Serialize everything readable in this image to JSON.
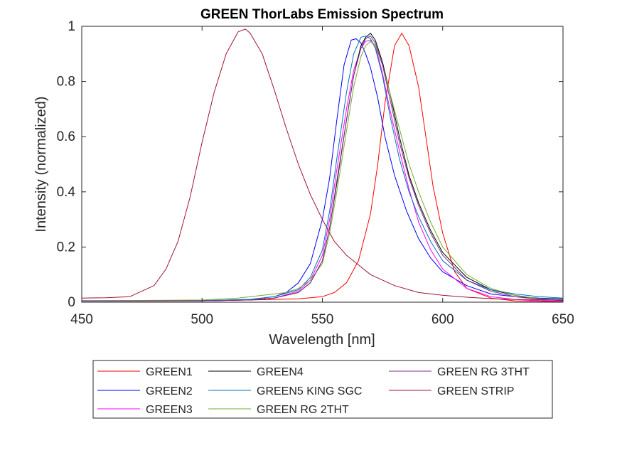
{
  "chart_data": {
    "type": "line",
    "title": "GREEN ThorLabs Emission Spectrum",
    "xlabel": "Wavelength [nm]",
    "ylabel": "Intensity (normalized)",
    "xlim": [
      450,
      650
    ],
    "ylim": [
      0,
      1
    ],
    "xticks": [
      450,
      500,
      550,
      600,
      650
    ],
    "yticks": [
      0,
      0.2,
      0.4,
      0.6,
      0.8,
      1
    ],
    "ytick_labels": [
      "0",
      "0.2",
      "0.4",
      "0.6",
      "0.8",
      "1"
    ],
    "grid": false,
    "legend_position": "below",
    "series": [
      {
        "name": "GREEN1",
        "color": "#ff0000",
        "x": [
          450,
          500,
          520,
          540,
          550,
          555,
          560,
          565,
          570,
          573,
          576,
          580,
          583,
          586,
          590,
          593,
          596,
          600,
          605,
          610,
          620,
          630,
          640,
          650
        ],
        "y": [
          0.005,
          0.005,
          0.008,
          0.012,
          0.02,
          0.035,
          0.07,
          0.15,
          0.32,
          0.5,
          0.72,
          0.93,
          0.975,
          0.93,
          0.78,
          0.6,
          0.42,
          0.25,
          0.11,
          0.05,
          0.015,
          0.005,
          0.003,
          0.002
        ]
      },
      {
        "name": "GREEN2",
        "color": "#0000ff",
        "x": [
          450,
          500,
          520,
          530,
          535,
          540,
          545,
          550,
          553,
          556,
          559,
          562,
          564,
          566,
          568,
          570,
          573,
          576,
          580,
          585,
          590,
          595,
          600,
          610,
          620,
          630,
          640,
          650
        ],
        "y": [
          0.005,
          0.006,
          0.01,
          0.02,
          0.035,
          0.07,
          0.14,
          0.3,
          0.45,
          0.66,
          0.86,
          0.95,
          0.955,
          0.94,
          0.9,
          0.85,
          0.74,
          0.6,
          0.46,
          0.33,
          0.23,
          0.16,
          0.11,
          0.06,
          0.03,
          0.02,
          0.015,
          0.012
        ]
      },
      {
        "name": "GREEN3",
        "color": "#ff00ff",
        "x": [
          450,
          500,
          520,
          530,
          540,
          545,
          550,
          553,
          556,
          560,
          563,
          566,
          568,
          570,
          572,
          575,
          578,
          582,
          586,
          590,
          595,
          600,
          610,
          620,
          630,
          640,
          650
        ],
        "y": [
          0.004,
          0.005,
          0.008,
          0.015,
          0.04,
          0.08,
          0.17,
          0.3,
          0.48,
          0.7,
          0.84,
          0.92,
          0.945,
          0.95,
          0.93,
          0.83,
          0.7,
          0.55,
          0.41,
          0.29,
          0.19,
          0.12,
          0.05,
          0.02,
          0.01,
          0.005,
          0.003
        ]
      },
      {
        "name": "GREEN4",
        "color": "#000000",
        "x": [
          450,
          500,
          520,
          530,
          540,
          545,
          550,
          553,
          556,
          560,
          563,
          566,
          568,
          570,
          572,
          575,
          578,
          582,
          586,
          590,
          595,
          600,
          610,
          620,
          630,
          640,
          650
        ],
        "y": [
          0.004,
          0.005,
          0.008,
          0.015,
          0.035,
          0.07,
          0.15,
          0.27,
          0.43,
          0.66,
          0.82,
          0.93,
          0.96,
          0.975,
          0.95,
          0.87,
          0.76,
          0.6,
          0.46,
          0.36,
          0.26,
          0.18,
          0.09,
          0.045,
          0.025,
          0.012,
          0.008
        ]
      },
      {
        "name": "GREEN5 KING SGC",
        "color": "#0072bd",
        "x": [
          450,
          500,
          520,
          530,
          540,
          545,
          550,
          553,
          556,
          560,
          563,
          566,
          568,
          570,
          572,
          575,
          578,
          582,
          586,
          590,
          595,
          600,
          610,
          620,
          630,
          640,
          650
        ],
        "y": [
          0.006,
          0.006,
          0.01,
          0.02,
          0.045,
          0.09,
          0.19,
          0.33,
          0.52,
          0.76,
          0.9,
          0.96,
          0.965,
          0.955,
          0.92,
          0.82,
          0.68,
          0.52,
          0.4,
          0.31,
          0.22,
          0.15,
          0.08,
          0.045,
          0.03,
          0.02,
          0.015
        ]
      },
      {
        "name": "GREEN RG 2THT",
        "color": "#77ac30",
        "x": [
          450,
          500,
          515,
          520,
          530,
          535,
          540,
          545,
          550,
          553,
          556,
          560,
          563,
          566,
          568,
          570,
          572,
          575,
          578,
          582,
          586,
          590,
          595,
          600,
          610,
          620,
          630,
          640,
          650
        ],
        "y": [
          0.005,
          0.008,
          0.015,
          0.02,
          0.03,
          0.035,
          0.05,
          0.08,
          0.14,
          0.25,
          0.4,
          0.62,
          0.78,
          0.89,
          0.93,
          0.945,
          0.93,
          0.86,
          0.76,
          0.63,
          0.5,
          0.4,
          0.29,
          0.2,
          0.1,
          0.05,
          0.025,
          0.012,
          0.008
        ]
      },
      {
        "name": "GREEN RG 3THT",
        "color": "#7e2f8e",
        "x": [
          450,
          500,
          520,
          530,
          540,
          545,
          550,
          553,
          556,
          560,
          563,
          566,
          568,
          570,
          572,
          575,
          578,
          582,
          586,
          590,
          595,
          600,
          610,
          620,
          630,
          640,
          650
        ],
        "y": [
          0.004,
          0.005,
          0.008,
          0.015,
          0.035,
          0.07,
          0.15,
          0.27,
          0.44,
          0.66,
          0.82,
          0.92,
          0.955,
          0.965,
          0.94,
          0.86,
          0.74,
          0.58,
          0.45,
          0.35,
          0.25,
          0.17,
          0.08,
          0.04,
          0.02,
          0.01,
          0.006
        ]
      },
      {
        "name": "GREEN STRIP",
        "color": "#a2142f",
        "x": [
          450,
          460,
          470,
          480,
          485,
          490,
          495,
          500,
          505,
          510,
          515,
          518,
          520,
          525,
          530,
          535,
          540,
          545,
          550,
          555,
          560,
          570,
          580,
          590,
          600,
          610,
          620,
          630,
          640,
          650
        ],
        "y": [
          0.015,
          0.016,
          0.02,
          0.06,
          0.12,
          0.22,
          0.38,
          0.58,
          0.76,
          0.9,
          0.98,
          0.99,
          0.975,
          0.9,
          0.77,
          0.63,
          0.5,
          0.39,
          0.3,
          0.22,
          0.17,
          0.1,
          0.06,
          0.035,
          0.025,
          0.018,
          0.013,
          0.01,
          0.008,
          0.007
        ]
      }
    ]
  }
}
